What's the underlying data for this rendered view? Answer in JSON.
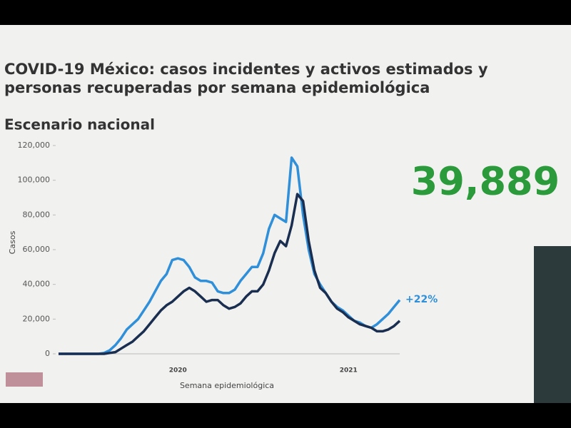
{
  "chart_data": {
    "type": "line",
    "title": "COVID-19 México: casos incidentes y activos estimados y personas recuperadas por semana epidemiológica",
    "subtitle": "Escenario nacional",
    "x_label": "Semana epidemiológica",
    "y_label": "Casos",
    "annotations": [
      "39,889",
      "+22%"
    ],
    "categories": [
      null,
      null,
      null,
      null,
      null,
      null,
      null,
      null,
      null,
      null,
      null,
      null,
      null,
      null,
      null,
      null,
      null,
      null,
      null,
      null,
      null,
      "2020",
      null,
      null,
      null,
      null,
      null,
      null,
      null,
      null,
      null,
      null,
      null,
      null,
      null,
      null,
      null,
      null,
      null,
      null,
      null,
      null,
      null,
      null,
      null,
      null,
      null,
      null,
      null,
      null,
      null,
      "2021",
      null,
      null,
      null,
      null,
      null,
      null,
      null,
      null,
      null
    ],
    "series": [
      {
        "color": "#2f8fd8",
        "values": [
          0,
          0,
          0,
          0,
          0,
          0,
          0,
          0,
          500,
          2000,
          5000,
          9000,
          14000,
          17000,
          20000,
          25000,
          30000,
          36000,
          42000,
          46000,
          54000,
          55000,
          54000,
          50000,
          44000,
          42000,
          42000,
          41000,
          36000,
          35000,
          35000,
          37000,
          42000,
          46000,
          50000,
          50000,
          58000,
          72000,
          80000,
          78000,
          76000,
          113000,
          108000,
          80000,
          60000,
          46000,
          40000,
          35000,
          30000,
          27000,
          25000,
          22000,
          19000,
          18000,
          16000,
          15000,
          17000,
          20000,
          23000,
          27000,
          31000
        ]
      },
      {
        "color": "#1a2e50",
        "values": [
          0,
          0,
          0,
          0,
          0,
          0,
          0,
          0,
          0,
          500,
          1000,
          3000,
          5000,
          7000,
          10000,
          13000,
          17000,
          21000,
          25000,
          28000,
          30000,
          33000,
          36000,
          38000,
          36000,
          33000,
          30000,
          31000,
          31000,
          28000,
          26000,
          27000,
          29000,
          33000,
          36000,
          36000,
          40000,
          48000,
          58000,
          65000,
          62000,
          74000,
          92000,
          88000,
          65000,
          48000,
          38000,
          35000,
          30000,
          26000,
          24000,
          21000,
          19000,
          17000,
          16000,
          15000,
          13000,
          13000,
          14000,
          16000,
          19000
        ]
      }
    ],
    "ylim": [
      0,
      120000
    ],
    "yticks": [
      0,
      {
        "value": 20000,
        "label": "20,000"
      },
      {
        "value": 40000,
        "label": "40,000"
      },
      {
        "value": 60000,
        "label": "60,000"
      },
      {
        "value": 80000,
        "label": "80,000"
      },
      {
        "value": 100000,
        "label": "100,000"
      },
      {
        "value": 120000,
        "label": "120,000"
      }
    ],
    "grid": false
  }
}
